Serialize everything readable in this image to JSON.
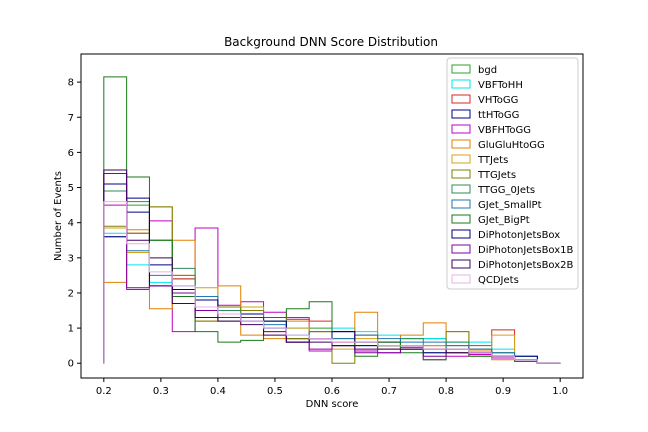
{
  "chart_data": {
    "type": "histogram-step",
    "title": "Background DNN Score Distribution",
    "xlabel": "DNN score",
    "ylabel": "Number of Events",
    "xlim": [
      0.16,
      1.04
    ],
    "ylim": [
      -0.42,
      8.8
    ],
    "xticks": [
      "0.2",
      "0.3",
      "0.4",
      "0.5",
      "0.6",
      "0.7",
      "0.8",
      "0.9",
      "1.0"
    ],
    "yticks": [
      "0",
      "1",
      "2",
      "3",
      "4",
      "5",
      "6",
      "7",
      "8"
    ],
    "grid": false,
    "legend_position": "top-right",
    "bin_edges": [
      0.2,
      0.24,
      0.28,
      0.32,
      0.36,
      0.4,
      0.44,
      0.48,
      0.52,
      0.56,
      0.6,
      0.64,
      0.68,
      0.72,
      0.76,
      0.8,
      0.84,
      0.88,
      0.92,
      0.96,
      1.0
    ],
    "series": [
      {
        "name": "bgd",
        "color": "#2ca02c",
        "values": [
          4.9,
          4.5,
          3.5,
          2.4,
          1.3,
          1.2,
          1.4,
          1.2,
          0.7,
          1.0,
          0.7,
          0.5,
          0.5,
          0.7,
          0.7,
          0.5,
          0.4,
          0.3,
          0.1,
          0
        ]
      },
      {
        "name": "VBFToHH",
        "color": "#00e5ee",
        "values": [
          3.7,
          2.8,
          2.3,
          2.0,
          1.6,
          1.3,
          1.4,
          1.0,
          1.0,
          0.7,
          1.0,
          0.9,
          0.8,
          0.7,
          0.7,
          0.6,
          0.6,
          0.4,
          0.2,
          0
        ]
      },
      {
        "name": "VHToGG",
        "color": "#d62728",
        "values": [
          5.4,
          3.7,
          2.2,
          2.4,
          1.5,
          1.4,
          1.3,
          1.3,
          1.3,
          1.2,
          0.6,
          0.8,
          0.6,
          0.5,
          0.5,
          0.4,
          0.5,
          0.95,
          0.1,
          0
        ]
      },
      {
        "name": "ttHToGG",
        "color": "#00008b",
        "values": [
          5.1,
          4.3,
          2.8,
          2.1,
          1.8,
          1.4,
          1.4,
          1.0,
          0.7,
          0.7,
          0.9,
          0.5,
          0.6,
          0.4,
          0.4,
          0.3,
          0.3,
          0.2,
          0.1,
          0
        ]
      },
      {
        "name": "VBFHToGG",
        "color": "#c000c0",
        "values": [
          4.5,
          2.1,
          4.05,
          0.9,
          3.85,
          1.65,
          1.75,
          1.45,
          1.25,
          0.35,
          0.6,
          0.35,
          0.3,
          0.45,
          0.1,
          0.2,
          0.25,
          0.15,
          0.05,
          0
        ]
      },
      {
        "name": "GluGluHtoGG",
        "color": "#e08000",
        "values": [
          2.3,
          3.8,
          1.55,
          3.5,
          1.2,
          2.2,
          0.8,
          0.7,
          1.2,
          0.9,
          0.6,
          1.45,
          0.5,
          0.8,
          1.15,
          0.3,
          0.35,
          0.1,
          0.05,
          0
        ]
      },
      {
        "name": "TTJets",
        "color": "#d4a017",
        "values": [
          3.85,
          3.15,
          4.45,
          2.5,
          2.15,
          1.5,
          1.6,
          0.9,
          1.0,
          0.9,
          0.4,
          0.7,
          0.5,
          0.4,
          0.5,
          0.9,
          0.3,
          0.8,
          0.1,
          0
        ]
      },
      {
        "name": "TTGJets",
        "color": "#808000",
        "values": [
          3.9,
          3.7,
          4.45,
          2.5,
          1.2,
          1.6,
          1.5,
          1.3,
          0.7,
          0.7,
          0.0,
          0.6,
          0.4,
          0.4,
          0.4,
          0.9,
          0.2,
          0.2,
          0.05,
          0
        ]
      },
      {
        "name": "TTGG_0Jets",
        "color": "#2e8b57",
        "values": [
          4.9,
          4.6,
          3.5,
          2.7,
          1.5,
          1.5,
          1.3,
          1.2,
          0.6,
          0.9,
          0.5,
          0.6,
          0.5,
          0.7,
          0.3,
          0.6,
          0.4,
          0.3,
          0.1,
          0
        ]
      },
      {
        "name": "GJet_SmallPt",
        "color": "#1f77b4",
        "values": [
          3.6,
          3.2,
          2.5,
          2.2,
          1.9,
          1.4,
          1.2,
          1.1,
          0.8,
          0.7,
          0.7,
          0.8,
          0.7,
          0.6,
          0.6,
          0.5,
          0.4,
          0.3,
          0.2,
          0
        ]
      },
      {
        "name": "GJet_BigPt",
        "color": "#1a7a1a",
        "values": [
          8.15,
          5.3,
          3.5,
          1.9,
          0.9,
          0.6,
          0.65,
          1.3,
          1.55,
          1.75,
          0.5,
          0.2,
          0.6,
          0.3,
          0.1,
          0.3,
          0.2,
          0.2,
          0.05,
          0
        ]
      },
      {
        "name": "DiPhotonJetsBox",
        "color": "#000080",
        "values": [
          3.6,
          4.7,
          2.2,
          2.1,
          1.8,
          1.4,
          1.2,
          1.2,
          0.6,
          0.7,
          0.9,
          0.6,
          0.5,
          0.5,
          0.3,
          0.4,
          0.3,
          0.2,
          0.2,
          0
        ]
      },
      {
        "name": "DiPhotonJetsBox1B",
        "color": "#8000a0",
        "values": [
          5.4,
          2.15,
          2.2,
          2.0,
          1.5,
          1.3,
          1.3,
          0.9,
          0.6,
          0.4,
          0.5,
          0.3,
          0.3,
          0.4,
          0.2,
          0.4,
          0.3,
          0.2,
          0.1,
          0
        ]
      },
      {
        "name": "DiPhotonJetsBox2B",
        "color": "#400060",
        "values": [
          5.5,
          3.5,
          3.0,
          1.7,
          1.3,
          1.2,
          1.1,
          0.8,
          0.6,
          0.6,
          0.5,
          0.4,
          0.4,
          0.4,
          0.4,
          0.3,
          0.3,
          0.2,
          0.1,
          0
        ]
      },
      {
        "name": "QCDJets",
        "color": "#e8b0e8",
        "values": [
          4.6,
          3.4,
          2.6,
          2.2,
          1.6,
          1.4,
          1.2,
          1.0,
          0.8,
          0.7,
          0.6,
          0.6,
          0.5,
          0.5,
          0.4,
          0.4,
          0.3,
          0.2,
          0.1,
          0
        ]
      }
    ]
  }
}
